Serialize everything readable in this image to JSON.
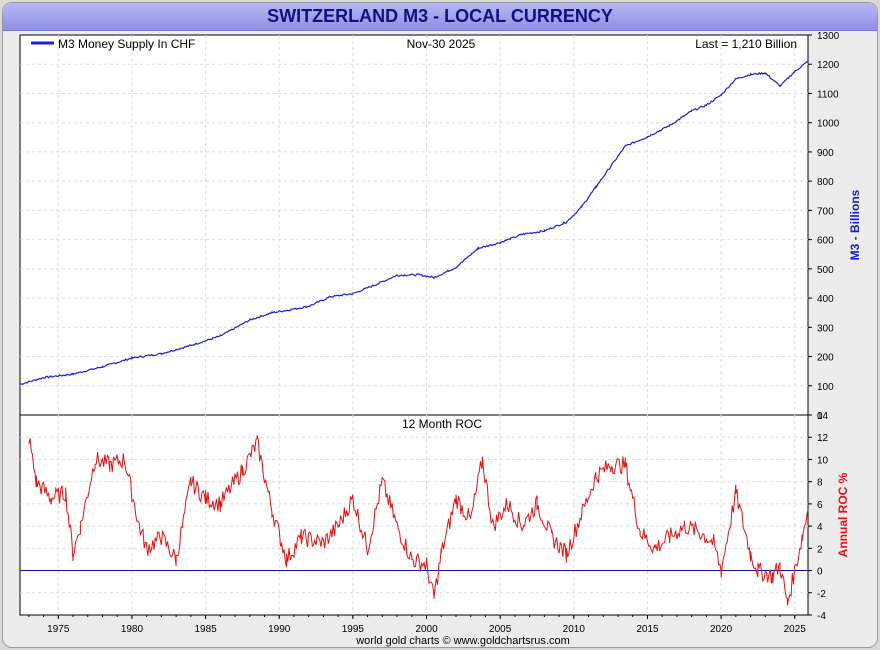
{
  "header": {
    "title": "SWITZERLAND M3 - LOCAL CURRENCY"
  },
  "top_panel": {
    "legend": "M3 Money Supply In CHF",
    "date": "Nov-30  2025",
    "last": "Last = 1,210 Billion",
    "ylabel": "M3 - Billions",
    "yticks": [
      "0",
      "100",
      "200",
      "300",
      "400",
      "500",
      "600",
      "700",
      "800",
      "900",
      "1000",
      "1100",
      "1200",
      "1300"
    ]
  },
  "bottom_panel": {
    "title": "12 Month ROC",
    "ylabel": "Annual ROC %",
    "yticks": [
      "-4",
      "-2",
      "0",
      "2",
      "4",
      "6",
      "8",
      "10",
      "12",
      "14"
    ]
  },
  "xaxis": {
    "ticks": [
      "1975",
      "1980",
      "1985",
      "1990",
      "1995",
      "2000",
      "2005",
      "2010",
      "2015",
      "2020",
      "2025"
    ]
  },
  "footer": {
    "credit": "world gold charts © www.goldchartsrus.com"
  },
  "colors": {
    "m3_line": "#1f1fd6",
    "roc_line": "#e81010",
    "zero_line": "#1010a0",
    "label_blue": "#1a1ad6",
    "label_red": "#e81010"
  },
  "chart_data": [
    {
      "type": "line",
      "title": "Switzerland M3 - Local Currency",
      "xlabel": "",
      "ylabel": "M3 - Billions",
      "xlim": [
        1972.4,
        2025.9
      ],
      "ylim": [
        0,
        1300
      ],
      "grid": true,
      "legend": "top-left",
      "series": [
        {
          "name": "M3 Money Supply In CHF",
          "x": [
            1972.4,
            1974,
            1976,
            1978,
            1980,
            1982,
            1984,
            1986,
            1988,
            1989.5,
            1990.5,
            1992,
            1993.5,
            1995,
            1996.5,
            1998,
            1999.5,
            2000.5,
            2002,
            2003.5,
            2005,
            2006.5,
            2008,
            2009.5,
            2010.5,
            2011.5,
            2012.5,
            2013.5,
            2015,
            2016.5,
            2018,
            2019,
            2020,
            2021,
            2022,
            2023,
            2024,
            2025,
            2025.9
          ],
          "y": [
            105,
            128,
            140,
            165,
            195,
            210,
            238,
            270,
            325,
            350,
            358,
            372,
            405,
            415,
            445,
            478,
            480,
            470,
            505,
            570,
            590,
            618,
            630,
            660,
            710,
            780,
            850,
            920,
            952,
            990,
            1040,
            1060,
            1095,
            1150,
            1165,
            1170,
            1125,
            1175,
            1210
          ]
        }
      ]
    },
    {
      "type": "line",
      "title": "12 Month ROC",
      "xlabel": "",
      "ylabel": "Annual ROC %",
      "xlim": [
        1972.4,
        2025.9
      ],
      "ylim": [
        -4,
        14
      ],
      "grid": true,
      "legend": "none",
      "series": [
        {
          "name": "Annual ROC %",
          "x": [
            1973,
            1973.5,
            1974.5,
            1975.5,
            1976,
            1976.5,
            1977.5,
            1978.5,
            1979.5,
            1980.5,
            1981,
            1982,
            1983,
            1984,
            1985,
            1986,
            1987.5,
            1988.5,
            1989.5,
            1990.5,
            1991.5,
            1993,
            1994,
            1995,
            1996,
            1997,
            1998,
            1999,
            2000,
            2000.5,
            2001,
            2002,
            2003,
            2003.8,
            2004.5,
            2005.5,
            2006.5,
            2007.5,
            2008.5,
            2009.5,
            2010.5,
            2011.5,
            2012.5,
            2013.5,
            2014.5,
            2015.5,
            2016.5,
            2017.5,
            2018.5,
            2019.5,
            2020,
            2021,
            2022,
            2022.5,
            2023.5,
            2024,
            2024.5,
            2025.5,
            2025.9
          ],
          "y": [
            12,
            8,
            6.5,
            7,
            1.5,
            4,
            10,
            9.5,
            10,
            4,
            2,
            3,
            1,
            8,
            6.5,
            6,
            9,
            11.5,
            5.5,
            1,
            3,
            2.5,
            4,
            6.5,
            2,
            8,
            4,
            1,
            0.5,
            -2.5,
            1.5,
            6.5,
            4.5,
            10,
            4,
            6,
            4,
            6,
            3,
            1.5,
            5,
            8.5,
            9.5,
            9.5,
            3.5,
            2,
            3,
            4,
            3.5,
            2.5,
            0,
            7,
            1.5,
            0,
            -0.5,
            0.5,
            -3,
            3,
            5.5
          ]
        }
      ]
    }
  ]
}
